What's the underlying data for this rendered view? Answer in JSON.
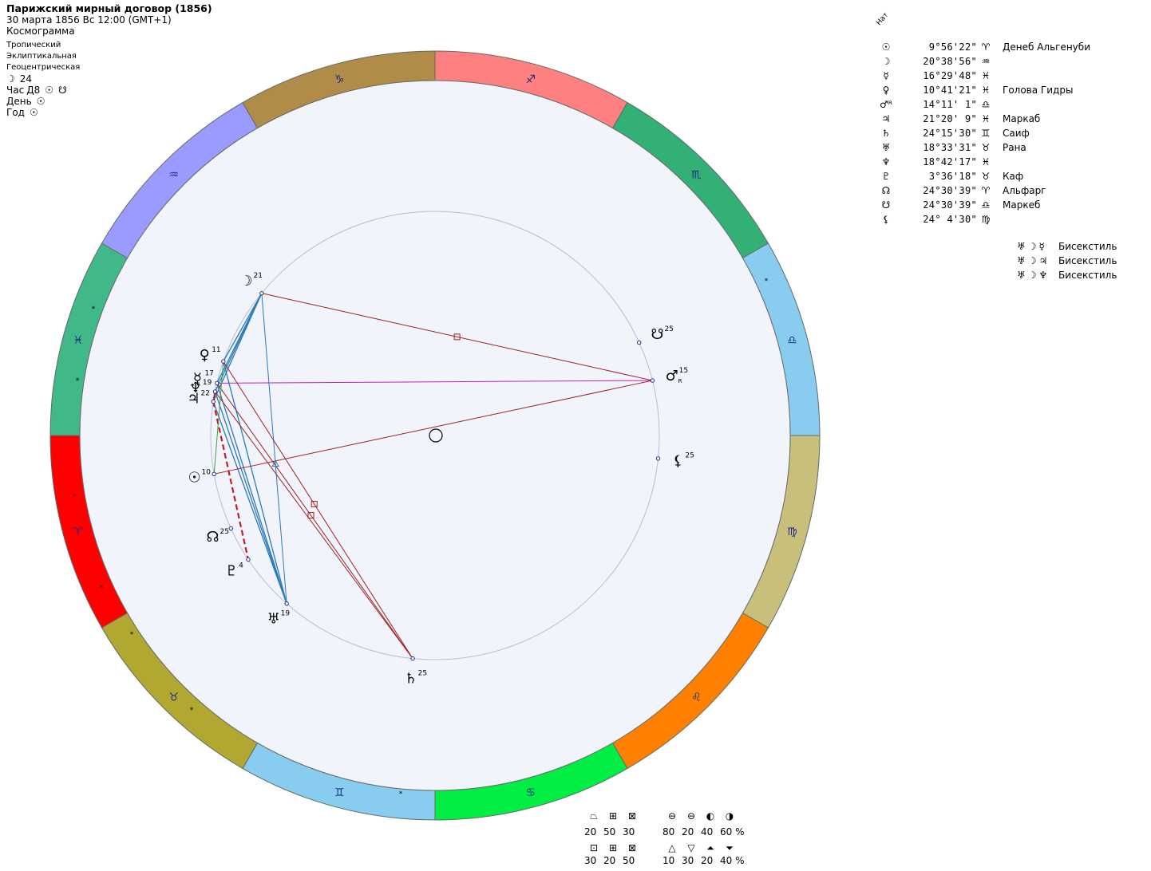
{
  "header": {
    "title": "Парижский мирный договор (1856)",
    "datetime": "30 марта 1856  Вс  12:00 (GMT+1)",
    "chart_kind": "Космограмма",
    "zodiac": "Тропический",
    "coords": "Эклиптикальная",
    "center": "Геоцентрическая",
    "moon_day": "24",
    "hour": "Час",
    "hour_value": "Д8",
    "day": "День",
    "year": "Год"
  },
  "planet_list": {
    "label": "Нат",
    "rows": [
      {
        "glyph": "☉",
        "deg": "9°56'22\"",
        "sign": "♈",
        "star": "Денеб Альгенуби"
      },
      {
        "glyph": "☽",
        "deg": "20°38'56\"",
        "sign": "♒",
        "star": ""
      },
      {
        "glyph": "☿",
        "deg": "16°29'48\"",
        "sign": "♓",
        "star": ""
      },
      {
        "glyph": "♀",
        "deg": "10°41'21\"",
        "sign": "♓",
        "star": "Голова Гидры"
      },
      {
        "glyph": "♂ᴿ",
        "deg": "14°11' 1\"",
        "sign": "♎",
        "star": ""
      },
      {
        "glyph": "♃",
        "deg": "21°20' 9\"",
        "sign": "♓",
        "star": "Маркаб"
      },
      {
        "glyph": "♄",
        "deg": "24°15'30\"",
        "sign": "♊",
        "star": "Саиф"
      },
      {
        "glyph": "♅",
        "deg": "18°33'31\"",
        "sign": "♉",
        "star": "Рана"
      },
      {
        "glyph": "♆",
        "deg": "18°42'17\"",
        "sign": "♓",
        "star": ""
      },
      {
        "glyph": "♇",
        "deg": "3°36'18\"",
        "sign": "♉",
        "star": "Каф"
      },
      {
        "glyph": "☊",
        "deg": "24°30'39\"",
        "sign": "♈",
        "star": "Альфарг"
      },
      {
        "glyph": "☋",
        "deg": "24°30'39\"",
        "sign": "♎",
        "star": "Маркеб"
      },
      {
        "glyph": "⚸",
        "deg": "24° 4'30\"",
        "sign": "♍",
        "star": ""
      }
    ]
  },
  "aspect_patterns": [
    {
      "glyphs": "♅☽☿",
      "name": "Бисекстиль"
    },
    {
      "glyphs": "♅☽♃",
      "name": "Бисекстиль"
    },
    {
      "glyphs": "♅☽♆",
      "name": "Бисекстиль"
    }
  ],
  "legend": {
    "row1_icons": [
      "⏢",
      "⊞",
      "⊠",
      "⊖",
      "⊖",
      "◐",
      "◑"
    ],
    "row1_values": [
      "20",
      "50",
      "30",
      "80",
      "20",
      "40",
      "60 %"
    ],
    "row2_icons": [
      "⊡",
      "⊞",
      "⊠",
      "△",
      "▽",
      "⏶",
      "⏷"
    ],
    "row2_values": [
      "30",
      "20",
      "50",
      "10",
      "30",
      "20",
      "40 %"
    ]
  },
  "wheel": {
    "signs": [
      {
        "glyph": "♐",
        "color": "#ff8080"
      },
      {
        "glyph": "♏",
        "color": "#33b075"
      },
      {
        "glyph": "♎",
        "color": "#88ccf0"
      },
      {
        "glyph": "♍",
        "color": "#c8c07a"
      },
      {
        "glyph": "♌",
        "color": "#ff8000"
      },
      {
        "glyph": "♋",
        "color": "#00ee44"
      },
      {
        "glyph": "♊",
        "color": "#88ccf0"
      },
      {
        "glyph": "♉",
        "color": "#b0a830"
      },
      {
        "glyph": "♈",
        "color": "#ff0000"
      },
      {
        "glyph": "♓",
        "color": "#40b888"
      },
      {
        "glyph": "♒",
        "color": "#9b9bff"
      },
      {
        "glyph": "♑",
        "color": "#b08c48"
      }
    ],
    "planets": [
      {
        "glyph": "☽",
        "deg": "21",
        "lon": 320.6
      },
      {
        "glyph": "♀",
        "deg": "11",
        "lon": 340.7
      },
      {
        "glyph": "☿",
        "deg": "17",
        "lon": 346.5
      },
      {
        "glyph": "♆",
        "deg": "19",
        "lon": 348.7
      },
      {
        "glyph": "♃",
        "deg": "22",
        "lon": 351.3
      },
      {
        "glyph": "☉",
        "deg": "10",
        "lon": 9.9
      },
      {
        "glyph": "☊",
        "deg": "25",
        "lon": 24.5
      },
      {
        "glyph": "♇",
        "deg": "4",
        "lon": 33.6
      },
      {
        "glyph": "♅",
        "deg": "19",
        "lon": 48.6
      },
      {
        "glyph": "♄",
        "deg": "25",
        "lon": 84.3
      },
      {
        "glyph": "⚸",
        "deg": "25",
        "lon": 174.1
      },
      {
        "glyph": "♂",
        "deg": "15",
        "lon": 194.2,
        "retro": "R"
      },
      {
        "glyph": "☋",
        "deg": "25",
        "lon": 204.5
      }
    ]
  }
}
